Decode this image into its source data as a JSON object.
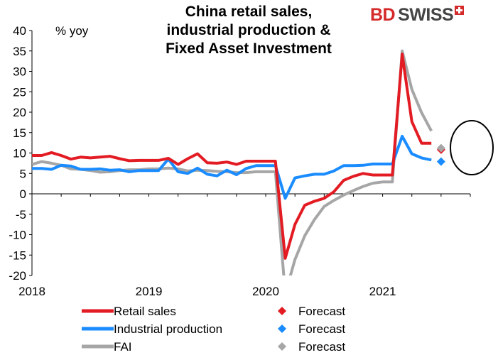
{
  "title_lines": [
    "China retail sales,",
    "industrial production &",
    "Fixed Asset Investment"
  ],
  "unit_label": "% yoy",
  "logo": {
    "part1": "BD",
    "part2": "SWISS",
    "color_red": "#d42a2a",
    "color_dark": "#444444"
  },
  "chart_data": {
    "type": "line",
    "title": "China retail sales, industrial production & Fixed Asset Investment",
    "ylabel": "% yoy",
    "ylim": [
      -20,
      40
    ],
    "yticks": [
      40,
      35,
      30,
      25,
      20,
      15,
      10,
      5,
      0,
      -5,
      -10,
      -15,
      -20
    ],
    "xlim": [
      2018.0,
      2021.75
    ],
    "xticks": [
      "2018",
      "2019",
      "2020",
      "2021"
    ],
    "grid": false,
    "legend_position": "bottom",
    "series": [
      {
        "name": "Retail sales",
        "color": "#e31b23",
        "x": [
          2018.0,
          2018.083,
          2018.167,
          2018.25,
          2018.333,
          2018.417,
          2018.5,
          2018.583,
          2018.667,
          2018.75,
          2018.833,
          2018.917,
          2019.0,
          2019.083,
          2019.167,
          2019.25,
          2019.333,
          2019.417,
          2019.5,
          2019.583,
          2019.667,
          2019.75,
          2019.833,
          2019.917,
          2020.0,
          2020.083,
          2020.167,
          2020.25,
          2020.333,
          2020.417,
          2020.5,
          2020.583,
          2020.667,
          2020.75,
          2020.833,
          2020.917,
          2021.0,
          2021.083,
          2021.167,
          2021.25,
          2021.333,
          2021.417
        ],
        "values": [
          9.4,
          9.4,
          10.1,
          9.4,
          8.5,
          9.0,
          8.8,
          9.0,
          9.2,
          8.6,
          8.1,
          8.2,
          8.2,
          8.2,
          8.7,
          7.2,
          8.6,
          9.8,
          7.6,
          7.5,
          7.8,
          7.2,
          8.0,
          8.0,
          8.0,
          8.0,
          -15.8,
          -7.5,
          -2.8,
          -1.8,
          -1.1,
          0.5,
          3.3,
          4.3,
          5.0,
          4.6,
          4.6,
          4.6,
          34.2,
          17.7,
          12.4,
          12.4
        ]
      },
      {
        "name": "Industrial production",
        "color": "#1a8cff",
        "x": [
          2018.0,
          2018.083,
          2018.167,
          2018.25,
          2018.333,
          2018.417,
          2018.5,
          2018.583,
          2018.667,
          2018.75,
          2018.833,
          2018.917,
          2019.0,
          2019.083,
          2019.167,
          2019.25,
          2019.333,
          2019.417,
          2019.5,
          2019.583,
          2019.667,
          2019.75,
          2019.833,
          2019.917,
          2020.0,
          2020.083,
          2020.167,
          2020.25,
          2020.333,
          2020.417,
          2020.5,
          2020.583,
          2020.667,
          2020.75,
          2020.833,
          2020.917,
          2021.0,
          2021.083,
          2021.167,
          2021.25,
          2021.333,
          2021.417
        ],
        "values": [
          6.2,
          6.2,
          6.0,
          7.0,
          6.8,
          6.0,
          6.0,
          6.1,
          5.8,
          5.9,
          5.4,
          5.7,
          5.7,
          5.7,
          8.5,
          5.4,
          5.0,
          6.3,
          4.8,
          4.4,
          5.8,
          4.7,
          6.2,
          6.9,
          6.9,
          6.9,
          -1.1,
          3.9,
          4.4,
          4.8,
          4.8,
          5.6,
          6.9,
          6.9,
          7.0,
          7.3,
          7.3,
          7.3,
          14.1,
          9.8,
          8.8,
          8.3
        ]
      },
      {
        "name": "FAI",
        "color": "#a6a6a6",
        "x": [
          2018.0,
          2018.083,
          2018.167,
          2018.25,
          2018.333,
          2018.417,
          2018.5,
          2018.583,
          2018.667,
          2018.75,
          2018.833,
          2018.917,
          2019.0,
          2019.083,
          2019.167,
          2019.25,
          2019.333,
          2019.417,
          2019.5,
          2019.583,
          2019.667,
          2019.75,
          2019.833,
          2019.917,
          2020.0,
          2020.083,
          2020.167,
          2020.25,
          2020.333,
          2020.417,
          2020.5,
          2020.583,
          2020.667,
          2020.75,
          2020.833,
          2020.917,
          2021.0,
          2021.083,
          2021.167,
          2021.25,
          2021.333,
          2021.417
        ],
        "values": [
          7.2,
          7.9,
          7.5,
          7.0,
          6.1,
          6.0,
          5.7,
          5.3,
          5.4,
          5.7,
          5.9,
          5.9,
          6.1,
          6.1,
          6.3,
          6.1,
          5.6,
          5.8,
          5.7,
          5.5,
          5.4,
          5.2,
          5.2,
          5.4,
          5.4,
          5.4,
          -24.5,
          -16.1,
          -10.3,
          -6.3,
          -3.1,
          -1.6,
          -0.3,
          0.8,
          1.8,
          2.6,
          2.9,
          2.9,
          35.0,
          25.6,
          19.9,
          15.4
        ]
      }
    ],
    "forecasts": [
      {
        "name": "Forecast",
        "series": "Retail sales",
        "color": "#e31b23",
        "x": 2021.5,
        "value": 10.8
      },
      {
        "name": "Forecast",
        "series": "Industrial production",
        "color": "#1a8cff",
        "x": 2021.5,
        "value": 7.9
      },
      {
        "name": "Forecast",
        "series": "FAI",
        "color": "#a6a6a6",
        "x": 2021.5,
        "value": 11.2
      }
    ],
    "legend": [
      {
        "label": "Retail sales",
        "color": "#e31b23",
        "forecast_label": "Forecast"
      },
      {
        "label": "Industrial production",
        "color": "#1a8cff",
        "forecast_label": "Forecast"
      },
      {
        "label": "FAI",
        "color": "#a6a6a6",
        "forecast_label": "Forecast"
      }
    ]
  }
}
